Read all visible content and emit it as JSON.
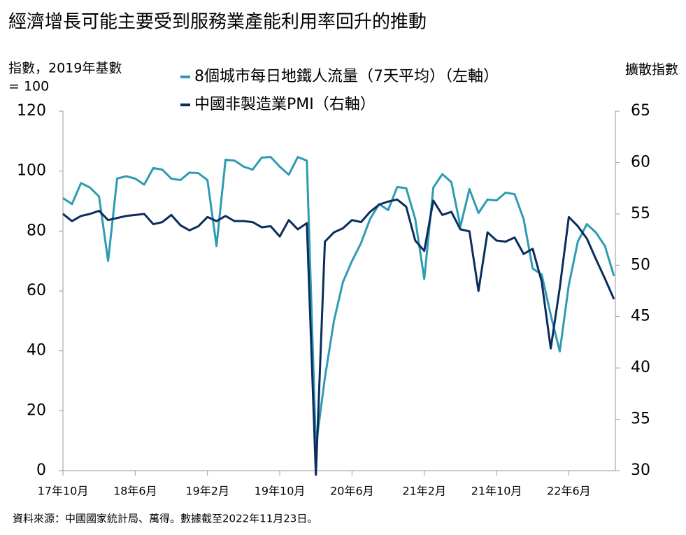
{
  "chart_data": {
    "type": "line",
    "title": "經濟增長可能主要受到服務業產能利用率回升的推動",
    "ylabel": [
      "指數，2019年基數",
      "= 100"
    ],
    "y2label": "擴散指數",
    "source": "資料來源：中國國家統計局、萬得。數據截至2022年11月23日。",
    "categories": [
      "17年10月",
      null,
      null,
      null,
      null,
      null,
      null,
      null,
      "18年6月",
      null,
      null,
      null,
      null,
      null,
      null,
      null,
      "19年2月",
      null,
      null,
      null,
      null,
      null,
      null,
      null,
      "19年10月",
      null,
      null,
      null,
      null,
      null,
      null,
      null,
      "20年6月",
      null,
      null,
      null,
      null,
      null,
      null,
      null,
      "21年2月",
      null,
      null,
      null,
      null,
      null,
      null,
      null,
      "21年10月",
      null,
      null,
      null,
      null,
      null,
      null,
      null,
      "22年6月",
      null,
      null,
      null,
      null,
      null
    ],
    "series": [
      {
        "name": "8個城市每日地鐵人流量（7天平均）（左軸）",
        "color": "#2e9bb3",
        "axis": "y",
        "values": [
          91,
          89,
          96,
          94.5,
          91.5,
          70,
          97.5,
          98.3,
          97.5,
          95.5,
          101,
          100.5,
          97.5,
          97,
          99.5,
          99.3,
          97,
          75,
          103.8,
          103.5,
          101.5,
          100.5,
          104.5,
          104.7,
          101.5,
          98.8,
          104.7,
          103.5,
          8,
          31,
          50,
          63,
          70,
          76,
          84,
          89,
          87,
          94.7,
          94.3,
          84,
          64,
          94.5,
          99,
          96.3,
          81.5,
          94,
          86,
          90.5,
          90.2,
          92.8,
          92.3,
          84,
          67.5,
          65.5,
          52,
          39.8,
          62,
          76.5,
          82.3,
          79.5,
          75,
          65
        ]
      },
      {
        "name": "中國非製造業PMI（右軸）",
        "color": "#0b2d5e",
        "axis": "y2",
        "values": [
          55.0,
          54.3,
          54.8,
          55.0,
          55.3,
          54.4,
          54.6,
          54.8,
          54.9,
          55.0,
          54.0,
          54.2,
          54.9,
          53.9,
          53.4,
          53.8,
          54.7,
          54.3,
          54.8,
          54.3,
          54.3,
          54.2,
          53.7,
          53.8,
          52.8,
          54.4,
          53.5,
          54.1,
          29.6,
          52.3,
          53.2,
          53.6,
          54.4,
          54.2,
          55.2,
          55.9,
          56.2,
          56.4,
          55.7,
          52.4,
          51.4,
          56.3,
          54.9,
          55.2,
          53.5,
          53.3,
          47.5,
          53.2,
          52.4,
          52.3,
          52.7,
          51.1,
          51.6,
          48.4,
          41.9,
          47.8,
          54.7,
          53.8,
          52.6,
          50.6,
          48.7,
          46.7
        ]
      }
    ],
    "ylim": [
      0,
      120
    ],
    "yticks": [
      0,
      20,
      40,
      60,
      80,
      100,
      120
    ],
    "y2lim": [
      30,
      65
    ],
    "y2ticks": [
      30,
      35,
      40,
      45,
      50,
      55,
      60,
      65
    ],
    "grid": false
  }
}
